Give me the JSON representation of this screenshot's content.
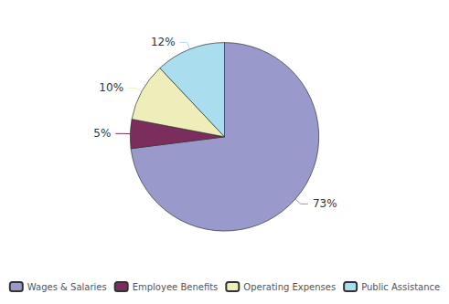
{
  "chart_data": {
    "type": "pie",
    "categories": [
      "Wages & Salaries",
      "Employee Benefits",
      "Operating Expenses",
      "Public Assistance"
    ],
    "values": [
      73,
      5,
      10,
      12
    ],
    "value_labels": [
      "73%",
      "5%",
      "10%",
      "12%"
    ],
    "colors": [
      "#9999CC",
      "#7B2D5E",
      "#EEEEBB",
      "#AADDEE"
    ],
    "data_labels": true,
    "legend": "bottom"
  }
}
